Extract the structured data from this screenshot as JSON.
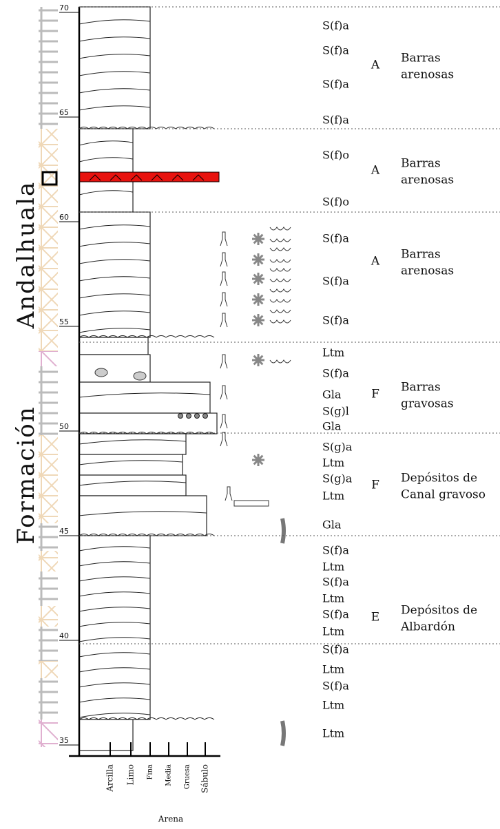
{
  "formation": {
    "prefix": "Formación",
    "name": "Andalhuala"
  },
  "scale": {
    "ticks": [
      70,
      65,
      60,
      55,
      50,
      45,
      40,
      35
    ]
  },
  "grain_size": {
    "labels": [
      "Arcilla",
      "Limo",
      "Fina",
      "Media",
      "Gruesa",
      "Sábulo"
    ],
    "group": "Arena"
  },
  "facies": [
    "S(f)a",
    "S(f)a",
    "S(f)a",
    "S(f)a",
    "S(f)o",
    "S(f)o",
    "S(f)a",
    "S(f)a",
    "S(f)a",
    "Ltm",
    "S(f)a",
    "Gla",
    "S(g)l",
    "Gla",
    "S(g)a",
    "Ltm",
    "S(g)a",
    "Ltm",
    "Gla",
    "S(f)a",
    "Ltm",
    "S(f)a",
    "Ltm",
    "S(f)a",
    "Ltm",
    "S(f)a",
    "Ltm",
    "S(f)a",
    "Ltm",
    "Ltm"
  ],
  "associations": [
    {
      "code": "A",
      "lines": [
        "Barras",
        "arenosas"
      ]
    },
    {
      "code": "A",
      "lines": [
        "Barras",
        "arenosas"
      ]
    },
    {
      "code": "A",
      "lines": [
        "Barras",
        "arenosas"
      ]
    },
    {
      "code": "F",
      "lines": [
        "Barras",
        "gravosas"
      ]
    },
    {
      "code": "F",
      "lines": [
        "Depósitos de",
        "Canal gravoso"
      ]
    },
    {
      "code": "E",
      "lines": [
        "Depósitos de",
        "Albardón"
      ]
    }
  ]
}
